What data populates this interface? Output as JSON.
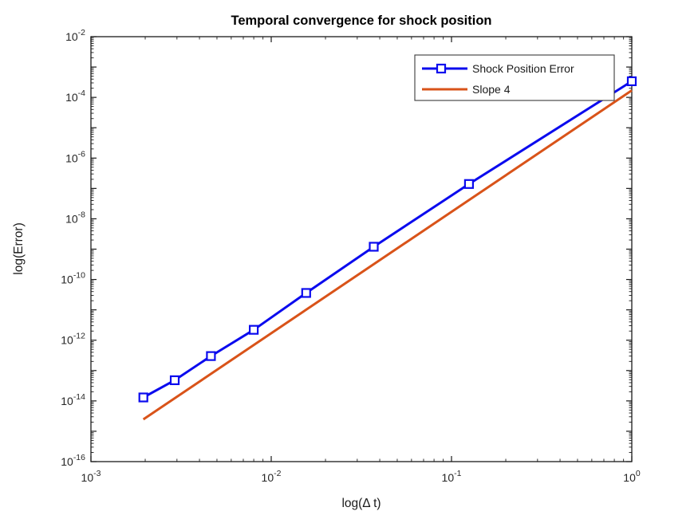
{
  "chart_data": {
    "type": "line",
    "title": "Temporal convergence for shock position",
    "xlabel": "log(Δ t)",
    "ylabel": "log(Error)",
    "x_scale": "log",
    "y_scale": "log",
    "xlim": [
      0.001,
      1
    ],
    "ylim": [
      1e-16,
      0.01
    ],
    "x_tick_exponents": [
      -3,
      -2,
      -1,
      0
    ],
    "y_tick_exponents": [
      -2,
      -4,
      -6,
      -8,
      -10,
      -12,
      -14,
      -16
    ],
    "grid": false,
    "tick_direction": "in",
    "axis_color": "#1a1a1a",
    "background_color": "#ffffff",
    "series": [
      {
        "name": "Shock Position Error",
        "color": "#0b0bee",
        "line_width": 3,
        "marker": "square",
        "marker_fill": "#ffffff",
        "x": [
          0.001953125,
          0.0029154519,
          0.0046296296,
          0.008,
          0.015625,
          0.037037037,
          0.125,
          1.0
        ],
        "y": [
          1.3e-14,
          4.8e-14,
          3e-13,
          2.2e-12,
          3.6e-11,
          1.2e-09,
          1.4e-07,
          0.00034
        ]
      },
      {
        "name": "Slope 4",
        "color": "#d95319",
        "line_width": 3,
        "marker": "none",
        "marker_fill": "",
        "x": [
          0.001953125,
          1.0
        ],
        "y": [
          2.47e-15,
          0.00017
        ]
      }
    ],
    "legend": {
      "position": "top-right",
      "entries": [
        "Shock Position Error",
        "Slope 4"
      ],
      "border_color": "#3b3b3b",
      "background": "#ffffff"
    }
  }
}
